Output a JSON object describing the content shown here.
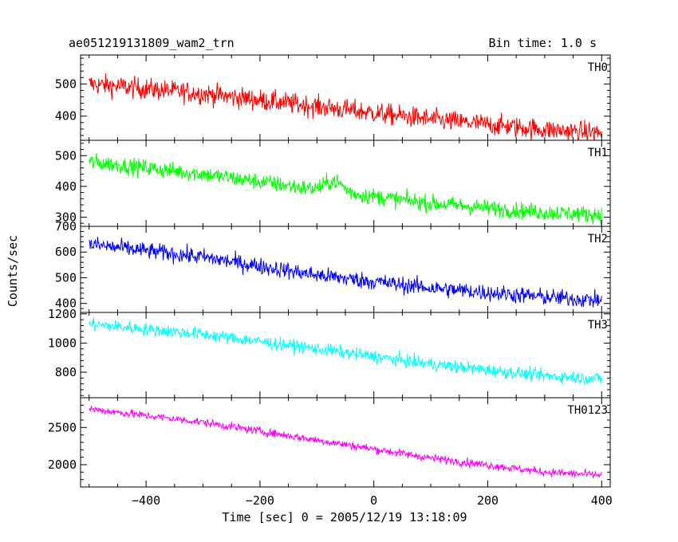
{
  "chart_data": {
    "type": "line",
    "title": "ae051219131809_wam2_trn",
    "subtitle": "Bin time: 1.0 s",
    "xlabel": "Time [sec] 0 = 2005/12/19 13:18:09",
    "ylabel": "Counts/sec",
    "xlim": [
      -515,
      415
    ],
    "x_ticks": [
      -400,
      -200,
      0,
      200,
      400
    ],
    "x_tick_labels": [
      "−400",
      "−200",
      "0",
      "200",
      "400"
    ],
    "x_range": [
      -500,
      400
    ],
    "grid": false,
    "series": [
      {
        "name": "TH0",
        "color": "#ff0000",
        "ylim": [
          325,
          590
        ],
        "y_ticks": [
          400,
          500
        ],
        "y_tick_labels": [
          "400",
          "500"
        ],
        "trend": [
          [
            -500,
            500
          ],
          [
            -300,
            470
          ],
          [
            -100,
            430
          ],
          [
            100,
            390
          ],
          [
            300,
            358
          ],
          [
            400,
            348
          ]
        ],
        "noise": 30,
        "features": []
      },
      {
        "name": "TH1",
        "color": "#00ff00",
        "ylim": [
          270,
          550
        ],
        "y_ticks": [
          300,
          400,
          500
        ],
        "y_tick_labels": [
          "300",
          "400",
          "500"
        ],
        "trend": [
          [
            -500,
            480
          ],
          [
            -300,
            440
          ],
          [
            -100,
            390
          ],
          [
            100,
            345
          ],
          [
            300,
            315
          ],
          [
            400,
            308
          ]
        ],
        "noise": 25,
        "features": [
          {
            "x": -70,
            "width": 30,
            "height": 35
          }
        ]
      },
      {
        "name": "TH2",
        "color": "#0000ff",
        "ylim": [
          365,
          700
        ],
        "y_ticks": [
          400,
          500,
          600,
          700
        ],
        "y_tick_labels": [
          "400",
          "500",
          "600",
          "700"
        ],
        "trend": [
          [
            -500,
            630
          ],
          [
            -300,
            580
          ],
          [
            -100,
            510
          ],
          [
            100,
            460
          ],
          [
            300,
            425
          ],
          [
            400,
            412
          ]
        ],
        "noise": 30,
        "features": []
      },
      {
        "name": "TH3",
        "color": "#00ffff",
        "ylim": [
          625,
          1210
        ],
        "y_ticks": [
          800,
          1000,
          1200
        ],
        "y_tick_labels": [
          "800",
          "1000",
          "1200"
        ],
        "trend": [
          [
            -500,
            1130
          ],
          [
            -300,
            1060
          ],
          [
            -100,
            960
          ],
          [
            100,
            855
          ],
          [
            300,
            775
          ],
          [
            400,
            755
          ]
        ],
        "noise": 40,
        "features": []
      },
      {
        "name": "TH0123",
        "color": "#ff00ff",
        "ylim": [
          1700,
          2900
        ],
        "y_ticks": [
          2000,
          2500
        ],
        "y_tick_labels": [
          "2000",
          "2500"
        ],
        "trend": [
          [
            -500,
            2750
          ],
          [
            -300,
            2570
          ],
          [
            -100,
            2330
          ],
          [
            100,
            2090
          ],
          [
            300,
            1900
          ],
          [
            400,
            1860
          ]
        ],
        "noise": 50,
        "features": []
      }
    ]
  }
}
